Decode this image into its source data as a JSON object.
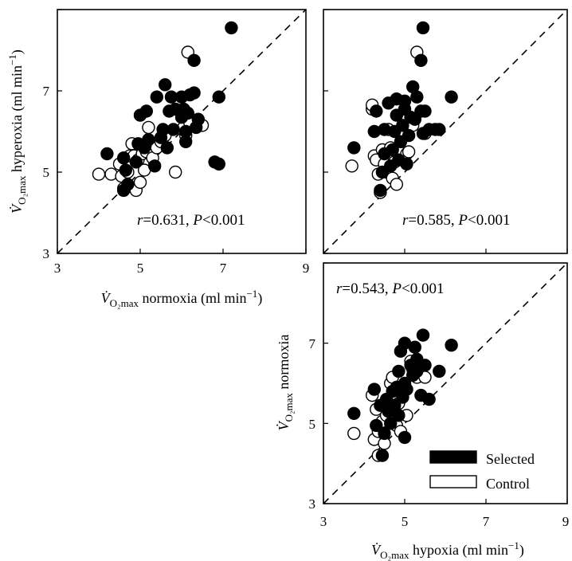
{
  "chart_data": [
    {
      "type": "scatter",
      "panel": "top-left",
      "xlabel": {
        "symbol": "V̇",
        "sub": "O₂max",
        "rest": " normoxia (ml min",
        "sup": "−1",
        "close": ")"
      },
      "ylabel": {
        "symbol": "V̇",
        "sub": "O₂max",
        "rest": " hyperoxia (ml min",
        "sup": "−1",
        "close": ")"
      },
      "xlim": [
        3,
        9
      ],
      "ylim": [
        3,
        9
      ],
      "xticks": [
        "3",
        "5",
        "7",
        "9"
      ],
      "yticks": [
        "3",
        "5",
        "7"
      ],
      "identity_line": true,
      "annotation": {
        "r": "r",
        "eq": "=0.631, ",
        "p": "P",
        "rest": "<0.001"
      },
      "series": [
        {
          "name": "Selected",
          "fill": "#000000",
          "points": [
            [
              4.2,
              5.45
            ],
            [
              4.6,
              5.35
            ],
            [
              4.65,
              5.05
            ],
            [
              4.6,
              4.55
            ],
            [
              4.7,
              4.7
            ],
            [
              4.9,
              5.25
            ],
            [
              4.95,
              5.7
            ],
            [
              5.0,
              6.4
            ],
            [
              5.15,
              6.5
            ],
            [
              5.1,
              5.6
            ],
            [
              5.2,
              5.8
            ],
            [
              5.35,
              5.15
            ],
            [
              5.4,
              6.85
            ],
            [
              5.5,
              5.85
            ],
            [
              5.55,
              6.05
            ],
            [
              5.6,
              7.15
            ],
            [
              5.65,
              5.6
            ],
            [
              5.7,
              6.5
            ],
            [
              5.75,
              6.85
            ],
            [
              5.8,
              6.05
            ],
            [
              5.85,
              6.55
            ],
            [
              6.0,
              6.85
            ],
            [
              6.0,
              6.35
            ],
            [
              6.05,
              6.55
            ],
            [
              6.1,
              5.75
            ],
            [
              6.1,
              6.0
            ],
            [
              6.15,
              6.45
            ],
            [
              6.2,
              6.9
            ],
            [
              6.3,
              7.75
            ],
            [
              6.3,
              6.95
            ],
            [
              6.4,
              6.3
            ],
            [
              6.35,
              6.1
            ],
            [
              6.9,
              6.85
            ],
            [
              7.2,
              8.55
            ],
            [
              6.8,
              5.25
            ],
            [
              6.9,
              5.2
            ]
          ]
        },
        {
          "name": "Control",
          "fill": "#ffffff",
          "points": [
            [
              4.0,
              4.95
            ],
            [
              4.3,
              4.95
            ],
            [
              4.5,
              5.2
            ],
            [
              4.55,
              4.9
            ],
            [
              4.6,
              4.6
            ],
            [
              4.7,
              5.0
            ],
            [
              4.75,
              5.4
            ],
            [
              4.8,
              5.7
            ],
            [
              4.85,
              5.4
            ],
            [
              4.9,
              4.55
            ],
            [
              4.95,
              5.3
            ],
            [
              5.0,
              4.75
            ],
            [
              5.05,
              5.45
            ],
            [
              5.1,
              5.05
            ],
            [
              5.15,
              5.5
            ],
            [
              5.2,
              6.1
            ],
            [
              5.3,
              5.35
            ],
            [
              5.4,
              5.6
            ],
            [
              5.5,
              5.75
            ],
            [
              5.6,
              5.9
            ],
            [
              5.85,
              5.0
            ],
            [
              6.05,
              6.1
            ],
            [
              6.1,
              5.9
            ],
            [
              6.2,
              6.2
            ],
            [
              6.15,
              7.95
            ],
            [
              6.5,
              6.15
            ]
          ]
        }
      ]
    },
    {
      "type": "scatter",
      "panel": "top-right",
      "xlim": [
        3,
        9
      ],
      "ylim": [
        3,
        9
      ],
      "identity_line": true,
      "annotation": {
        "r": "r",
        "eq": "=0.585, ",
        "p": "P",
        "rest": "<0.001"
      },
      "series": [
        {
          "name": "Selected",
          "fill": "#000000",
          "points": [
            [
              3.75,
              5.6
            ],
            [
              4.25,
              6.0
            ],
            [
              4.3,
              6.5
            ],
            [
              4.4,
              4.55
            ],
            [
              4.45,
              5.0
            ],
            [
              4.5,
              5.45
            ],
            [
              4.5,
              6.05
            ],
            [
              4.6,
              6.7
            ],
            [
              4.65,
              5.15
            ],
            [
              4.7,
              5.55
            ],
            [
              4.75,
              6.0
            ],
            [
              4.8,
              6.4
            ],
            [
              4.8,
              6.8
            ],
            [
              4.85,
              5.3
            ],
            [
              4.9,
              5.75
            ],
            [
              4.95,
              6.15
            ],
            [
              5.0,
              6.55
            ],
            [
              5.0,
              6.75
            ],
            [
              5.05,
              5.2
            ],
            [
              5.1,
              5.9
            ],
            [
              5.15,
              6.35
            ],
            [
              5.2,
              7.1
            ],
            [
              5.25,
              6.3
            ],
            [
              5.3,
              6.85
            ],
            [
              5.4,
              6.5
            ],
            [
              5.45,
              5.95
            ],
            [
              5.4,
              7.75
            ],
            [
              5.45,
              8.55
            ],
            [
              5.5,
              6.5
            ],
            [
              5.6,
              6.05
            ],
            [
              5.75,
              6.05
            ],
            [
              5.85,
              6.05
            ],
            [
              6.15,
              6.85
            ]
          ]
        },
        {
          "name": "Control",
          "fill": "#ffffff",
          "points": [
            [
              3.7,
              5.15
            ],
            [
              4.2,
              6.55
            ],
            [
              4.2,
              6.65
            ],
            [
              4.25,
              5.4
            ],
            [
              4.3,
              5.3
            ],
            [
              4.35,
              4.95
            ],
            [
              4.4,
              4.5
            ],
            [
              4.45,
              5.55
            ],
            [
              4.5,
              5.2
            ],
            [
              4.55,
              5.0
            ],
            [
              4.6,
              6.05
            ],
            [
              4.65,
              5.6
            ],
            [
              4.7,
              4.85
            ],
            [
              4.75,
              5.25
            ],
            [
              4.8,
              4.7
            ],
            [
              4.85,
              5.5
            ],
            [
              5.0,
              5.95
            ],
            [
              5.05,
              5.45
            ],
            [
              5.1,
              5.5
            ],
            [
              5.2,
              6.15
            ],
            [
              5.3,
              7.95
            ],
            [
              5.5,
              5.95
            ]
          ]
        }
      ]
    },
    {
      "type": "scatter",
      "panel": "bottom-right",
      "xlabel": {
        "symbol": "V̇",
        "sub": "O₂max",
        "rest": " hypoxia (ml min",
        "sup": "−1",
        "close": ")"
      },
      "ylabel": {
        "symbol": "V̇",
        "sub": "O₂max",
        "rest": " normoxia",
        "sup": "",
        "close": ""
      },
      "xlim": [
        3,
        9
      ],
      "ylim": [
        3,
        9
      ],
      "xticks": [
        "3",
        "5",
        "7",
        "9"
      ],
      "yticks": [
        "3",
        "5",
        "7"
      ],
      "identity_line": true,
      "annotation": {
        "r": "r",
        "eq": "=0.543, ",
        "p": "P",
        "rest": "<0.001"
      },
      "series": [
        {
          "name": "Selected",
          "fill": "#000000",
          "points": [
            [
              3.75,
              5.25
            ],
            [
              4.25,
              5.85
            ],
            [
              4.3,
              4.95
            ],
            [
              4.4,
              5.45
            ],
            [
              4.45,
              4.2
            ],
            [
              4.5,
              4.75
            ],
            [
              4.55,
              5.6
            ],
            [
              4.6,
              5.3
            ],
            [
              4.65,
              5.0
            ],
            [
              4.7,
              5.8
            ],
            [
              4.75,
              5.45
            ],
            [
              4.8,
              5.9
            ],
            [
              4.85,
              5.2
            ],
            [
              4.85,
              6.3
            ],
            [
              4.9,
              6.8
            ],
            [
              4.95,
              5.65
            ],
            [
              5.0,
              6.0
            ],
            [
              5.0,
              7.0
            ],
            [
              5.0,
              4.65
            ],
            [
              5.05,
              5.85
            ],
            [
              5.15,
              6.45
            ],
            [
              5.2,
              6.2
            ],
            [
              5.25,
              6.9
            ],
            [
              5.3,
              6.6
            ],
            [
              5.3,
              6.3
            ],
            [
              5.4,
              5.7
            ],
            [
              5.45,
              7.2
            ],
            [
              5.5,
              6.45
            ],
            [
              5.6,
              5.6
            ],
            [
              5.85,
              6.3
            ],
            [
              6.15,
              6.95
            ]
          ]
        },
        {
          "name": "Control",
          "fill": "#ffffff",
          "points": [
            [
              3.75,
              4.75
            ],
            [
              4.2,
              5.7
            ],
            [
              4.25,
              4.6
            ],
            [
              4.3,
              5.35
            ],
            [
              4.35,
              4.8
            ],
            [
              4.35,
              4.2
            ],
            [
              4.45,
              5.05
            ],
            [
              4.5,
              4.5
            ],
            [
              4.55,
              5.2
            ],
            [
              4.65,
              6.0
            ],
            [
              4.7,
              6.15
            ],
            [
              4.75,
              5.25
            ],
            [
              4.8,
              4.95
            ],
            [
              4.85,
              5.5
            ],
            [
              4.9,
              4.8
            ],
            [
              5.05,
              5.2
            ],
            [
              5.15,
              6.55
            ],
            [
              5.2,
              6.35
            ],
            [
              5.3,
              6.15
            ],
            [
              5.5,
              6.15
            ]
          ]
        }
      ]
    }
  ],
  "legend": {
    "placement": "bottom-right",
    "items": [
      {
        "label": "Selected",
        "fill": "#000000"
      },
      {
        "label": "Control",
        "fill": "#ffffff"
      }
    ]
  }
}
